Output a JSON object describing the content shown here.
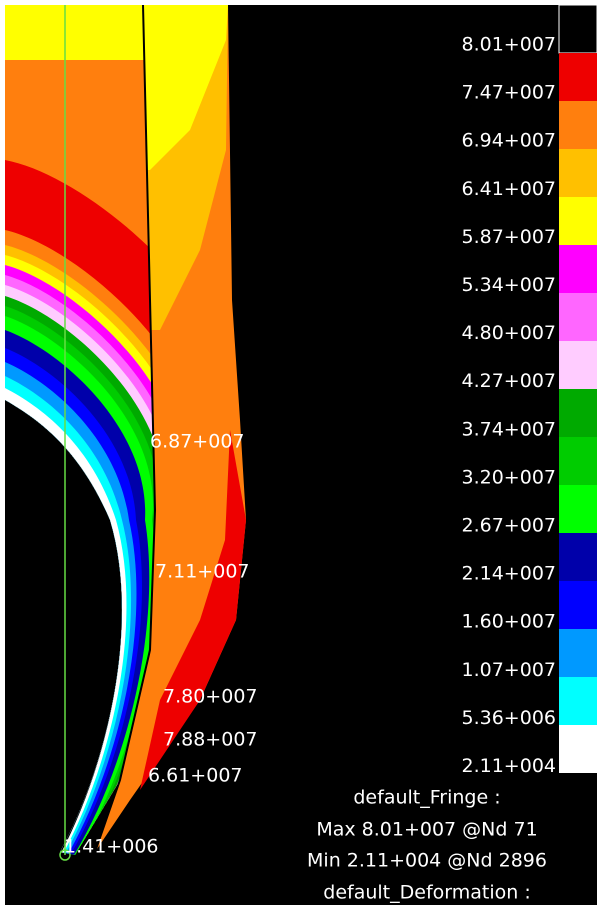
{
  "legend": {
    "items": [
      {
        "label": "8.01+007",
        "color": "#000000"
      },
      {
        "label": "7.47+007",
        "color": "#ee0000"
      },
      {
        "label": "6.94+007",
        "color": "#ff7f0e"
      },
      {
        "label": "6.41+007",
        "color": "#ffc000"
      },
      {
        "label": "5.87+007",
        "color": "#ffff00"
      },
      {
        "label": "5.34+007",
        "color": "#ff00ff"
      },
      {
        "label": "4.80+007",
        "color": "#ff66ff"
      },
      {
        "label": "4.27+007",
        "color": "#ffccff"
      },
      {
        "label": "3.74+007",
        "color": "#00aa00"
      },
      {
        "label": "3.20+007",
        "color": "#00cc00"
      },
      {
        "label": "2.67+007",
        "color": "#00ff00"
      },
      {
        "label": "2.14+007",
        "color": "#0000aa"
      },
      {
        "label": "1.60+007",
        "color": "#0000ff"
      },
      {
        "label": "1.07+007",
        "color": "#0099ff"
      },
      {
        "label": "5.36+006",
        "color": "#00ffff"
      },
      {
        "label": "2.11+004",
        "color": "#ffffff"
      }
    ]
  },
  "plot_labels": [
    "6.87+007",
    "7.11+007",
    "7.80+007",
    "7.88+007",
    "6.61+007",
    "1.41+006"
  ],
  "info": [
    "default_Fringe :",
    "Max 8.01+007 @Nd 71",
    "Min 2.11+004 @Nd 2896",
    "default_Deformation :"
  ]
}
